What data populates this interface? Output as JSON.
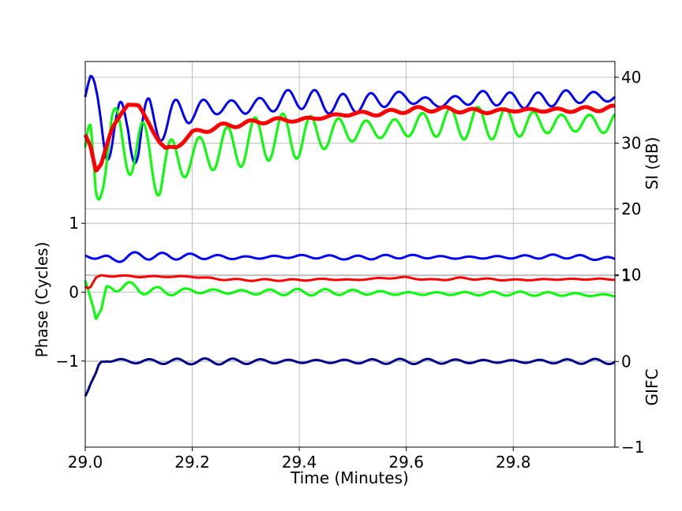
{
  "chart_data": {
    "type": "line",
    "x_axis": {
      "label": "Time (Minutes)",
      "range": [
        29.0,
        29.99
      ],
      "ticks": [
        "29.0",
        "29.2",
        "29.4",
        "29.6",
        "29.8"
      ],
      "tick_values": [
        29.0,
        29.2,
        29.4,
        29.6,
        29.8
      ]
    },
    "y_axes": {
      "phase": {
        "label": "Phase (Cycles)",
        "side": "left",
        "range": [
          -2.25,
          3.35
        ],
        "ticks": [
          "1",
          "0",
          "−1"
        ],
        "tick_values": [
          1,
          0,
          -1
        ]
      },
      "si": {
        "label": "SI (dB)",
        "side": "right",
        "range": [
          -16.2,
          42.4
        ],
        "ticks": [
          "40",
          "30",
          "20",
          "10"
        ],
        "tick_values": [
          40,
          30,
          20,
          10
        ]
      },
      "gifc": {
        "label": "GIFC",
        "side": "right",
        "range": [
          -1.0,
          3.5
        ],
        "ticks": [
          "1",
          "0",
          "−1"
        ],
        "tick_values": [
          1,
          0,
          -1
        ]
      }
    },
    "grid": true,
    "series": [
      {
        "axis": "si",
        "color": "#0000ff",
        "x": [
          29.0,
          29.01,
          29.02,
          29.03,
          29.04,
          29.05,
          29.06,
          29.08,
          29.1,
          29.12,
          29.14,
          29.16,
          29.2,
          29.25,
          29.3,
          29.35,
          29.4,
          29.45,
          29.5,
          29.55,
          29.6,
          29.65,
          29.7,
          29.75,
          29.8,
          29.85,
          29.9,
          29.95,
          29.99
        ],
        "y": [
          37,
          38,
          36,
          35,
          33,
          31,
          30,
          33,
          31,
          33,
          33,
          34,
          35,
          35.5,
          35.5,
          36,
          37,
          36,
          36,
          36.5,
          37,
          36,
          36.5,
          37,
          36.5,
          36.5,
          37,
          37,
          37
        ],
        "osc_amp": [
          3,
          3,
          4,
          5,
          6,
          6,
          6,
          4.5,
          5,
          4,
          3,
          3,
          2.5,
          2,
          2,
          1.8,
          2,
          1.5,
          1.5,
          1.5,
          1.5,
          1.3,
          1.3,
          1.3,
          1.2,
          1.2,
          1.2,
          1.2,
          1.2
        ]
      },
      {
        "axis": "si",
        "color": "#00ff00",
        "x": [
          29.0,
          29.01,
          29.02,
          29.03,
          29.05,
          29.08,
          29.1,
          29.12,
          29.14,
          29.16,
          29.2,
          29.25,
          29.3,
          29.35,
          29.4,
          29.45,
          29.5,
          29.55,
          29.6,
          29.65,
          29.7,
          29.75,
          29.8,
          29.85,
          29.9,
          29.95,
          29.99
        ],
        "y": [
          26,
          28,
          24,
          27,
          31,
          30,
          29,
          28,
          26,
          27,
          28,
          29,
          30,
          31,
          31,
          31.5,
          32,
          32,
          32.5,
          33,
          33,
          33,
          33,
          33,
          33,
          33,
          33
        ],
        "osc_amp": [
          4,
          6,
          6,
          5,
          5,
          6,
          7,
          7,
          8,
          7,
          5,
          4.5,
          4,
          3.5,
          3.5,
          3,
          3,
          2.5,
          2.5,
          2.5,
          2.5,
          2.5,
          2.5,
          2.5,
          2.5,
          2.5,
          2.5
        ]
      },
      {
        "axis": "si",
        "color": "#ff0000",
        "x": [
          29.0,
          29.01,
          29.02,
          29.03,
          29.05,
          29.07,
          29.08,
          29.1,
          29.12,
          29.14,
          29.15,
          29.17,
          29.2,
          29.25,
          29.3,
          29.35,
          29.4,
          29.45,
          29.5,
          29.55,
          29.6,
          29.65,
          29.7,
          29.75,
          29.8,
          29.85,
          29.9,
          29.95,
          29.99
        ],
        "y": [
          31,
          29.5,
          26,
          27,
          32,
          35,
          36,
          35.5,
          33,
          30,
          29,
          29.5,
          31.5,
          32.5,
          33,
          33.5,
          33.5,
          34,
          34.5,
          34.5,
          35,
          35.2,
          35,
          34.8,
          35,
          35,
          35,
          35.2,
          35.3
        ],
        "osc_amp": [
          0.4,
          0.4,
          0.4,
          0.4,
          0.4,
          0.4,
          0.4,
          0.4,
          0.4,
          0.4,
          0.4,
          0.4,
          0.4,
          0.4,
          0.4,
          0.4,
          0.4,
          0.4,
          0.4,
          0.4,
          0.4,
          0.4,
          0.4,
          0.4,
          0.4,
          0.4,
          0.4,
          0.4,
          0.4
        ]
      },
      {
        "axis": "phase",
        "color": "#0000ff",
        "x": [
          29.0,
          29.03,
          29.05,
          29.08,
          29.1,
          29.15,
          29.2,
          29.3,
          29.4,
          29.5,
          29.6,
          29.7,
          29.8,
          29.9,
          29.99
        ],
        "y": [
          0.53,
          0.5,
          0.47,
          0.52,
          0.53,
          0.52,
          0.52,
          0.5,
          0.52,
          0.5,
          0.52,
          0.5,
          0.51,
          0.52,
          0.48
        ],
        "osc_amp": [
          0.04,
          0.06,
          0.08,
          0.07,
          0.06,
          0.05,
          0.04,
          0.035,
          0.035,
          0.03,
          0.03,
          0.03,
          0.03,
          0.03,
          0.03
        ]
      },
      {
        "axis": "phase",
        "color": "#00ff00",
        "x": [
          29.0,
          29.005,
          29.01,
          29.015,
          29.02,
          29.025,
          29.03,
          29.04,
          29.05,
          29.1,
          29.15,
          29.2,
          29.3,
          29.4,
          29.5,
          29.6,
          29.7,
          29.8,
          29.9,
          29.99
        ],
        "y": [
          0.2,
          0.1,
          -0.05,
          -0.2,
          -0.4,
          -0.35,
          -0.3,
          0.05,
          0.1,
          0.05,
          0.0,
          0.02,
          0.0,
          0.0,
          0.0,
          -0.02,
          -0.02,
          -0.02,
          -0.03,
          -0.05
        ],
        "osc_amp": [
          0.05,
          0.05,
          0.05,
          0.05,
          0.05,
          0.05,
          0.05,
          0.07,
          0.08,
          0.08,
          0.07,
          0.06,
          0.05,
          0.05,
          0.04,
          0.04,
          0.03,
          0.03,
          0.03,
          0.03
        ]
      },
      {
        "axis": "gifc",
        "color": "#ff0000",
        "x": [
          29.0,
          29.005,
          29.01,
          29.015,
          29.02,
          29.03,
          29.05,
          29.1,
          29.2,
          29.25,
          29.3,
          29.4,
          29.45,
          29.5,
          29.55,
          29.6,
          29.63,
          29.65,
          29.7,
          29.8,
          29.9,
          29.99
        ],
        "y": [
          0.88,
          0.86,
          0.87,
          0.92,
          0.97,
          1.0,
          1.0,
          0.99,
          0.99,
          0.96,
          0.95,
          0.95,
          0.96,
          0.95,
          0.97,
          0.98,
          0.96,
          0.95,
          0.97,
          0.95,
          0.96,
          0.96
        ],
        "osc_amp": [
          0.01,
          0.01,
          0.01,
          0.01,
          0.01,
          0.01,
          0.012,
          0.012,
          0.01,
          0.01,
          0.01,
          0.01,
          0.01,
          0.01,
          0.01,
          0.01,
          0.01,
          0.01,
          0.01,
          0.01,
          0.01,
          0.01
        ]
      },
      {
        "axis": "gifc",
        "color": "#00008b",
        "x": [
          29.0,
          29.005,
          29.01,
          29.015,
          29.02,
          29.025,
          29.03,
          29.04,
          29.05,
          29.1,
          29.2,
          29.3,
          29.4,
          29.5,
          29.6,
          29.7,
          29.8,
          29.9,
          29.99
        ],
        "y": [
          -0.4,
          -0.35,
          -0.28,
          -0.22,
          -0.15,
          -0.05,
          0.0,
          0.02,
          0.01,
          0.0,
          0.0,
          0.0,
          0.0,
          0.0,
          0.0,
          0.0,
          0.0,
          0.0,
          0.0
        ],
        "osc_amp": [
          0.04,
          0.04,
          0.04,
          0.04,
          0.04,
          0.04,
          0.04,
          0.04,
          0.04,
          0.04,
          0.035,
          0.035,
          0.035,
          0.03,
          0.03,
          0.03,
          0.03,
          0.03,
          0.03
        ]
      }
    ]
  }
}
